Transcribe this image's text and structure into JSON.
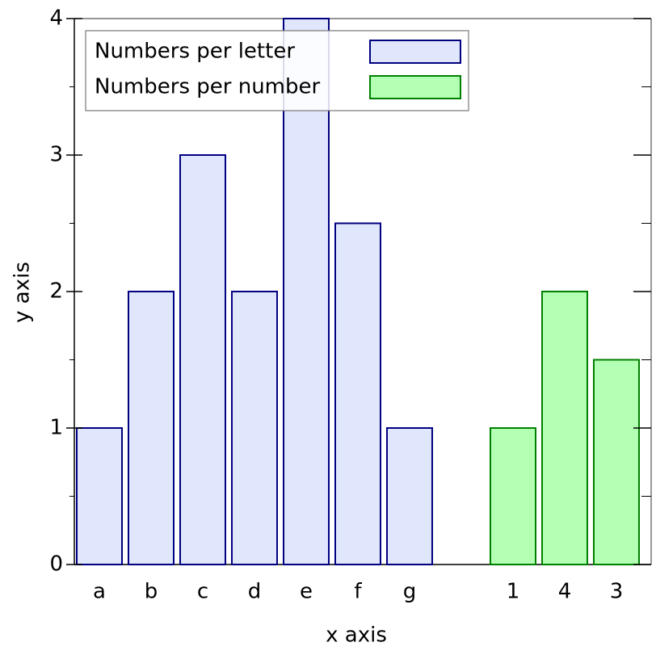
{
  "chart_data": {
    "type": "bar",
    "xlabel": "x axis",
    "ylabel": "y axis",
    "categories": [
      "a",
      "b",
      "c",
      "d",
      "e",
      "f",
      "g",
      null,
      "1",
      "4",
      "3"
    ],
    "series": [
      {
        "name": "Numbers per letter",
        "color": "#e0e6fc",
        "edgecolor": "#000080",
        "values": [
          1,
          2,
          3,
          2,
          4,
          2.5,
          1,
          null,
          null,
          null,
          null
        ]
      },
      {
        "name": "Numbers per number",
        "color": "#b3ffb3",
        "edgecolor": "#008000",
        "values": [
          null,
          null,
          null,
          null,
          null,
          null,
          null,
          null,
          1,
          2,
          1.5
        ]
      }
    ],
    "ylim": [
      0,
      4
    ],
    "yticks": [
      0,
      1,
      2,
      3,
      4
    ],
    "legend": "upper left"
  }
}
